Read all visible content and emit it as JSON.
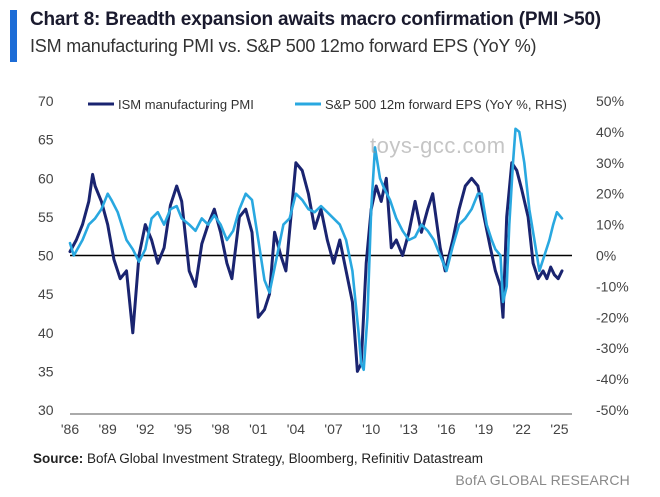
{
  "header": {
    "title": "Chart 8: Breadth expansion awaits macro confirmation (PMI >50)",
    "subtitle": "ISM manufacturing PMI vs. S&P 500 12mo forward EPS (YoY %)"
  },
  "source": {
    "prefix": "Source:",
    "text": " BofA Global Investment Strategy, Bloomberg, Refinitiv Datastream"
  },
  "brand": "BofA GLOBAL RESEARCH",
  "watermark": "toys-gcc.com",
  "colors": {
    "pmi": "#1a2470",
    "eps": "#29a8e0",
    "accent": "#1d6cd6"
  },
  "chart_data": {
    "type": "line",
    "x_tick_labels": [
      "'86",
      "'89",
      "'92",
      "'95",
      "'98",
      "'01",
      "'04",
      "'07",
      "'10",
      "'13",
      "'16",
      "'19",
      "'22",
      "'25"
    ],
    "x_ticks": [
      1986,
      1989,
      1992,
      1995,
      1998,
      2001,
      2004,
      2007,
      2010,
      2013,
      2016,
      2019,
      2022,
      2025
    ],
    "xlim": [
      1986,
      2026
    ],
    "y_left": {
      "lim": [
        30,
        70
      ],
      "ticks": [
        30,
        35,
        40,
        45,
        50,
        55,
        60,
        65,
        70
      ],
      "tick_labels": [
        "30",
        "35",
        "40",
        "45",
        "50",
        "55",
        "60",
        "65",
        "70"
      ]
    },
    "y_right": {
      "lim": [
        -50,
        50
      ],
      "ticks": [
        -50,
        -40,
        -30,
        -20,
        -10,
        0,
        10,
        20,
        30,
        40,
        50
      ],
      "tick_labels": [
        "-50%",
        "-40%",
        "-30%",
        "-20%",
        "-10%",
        "0%",
        "10%",
        "20%",
        "30%",
        "40%",
        "50%"
      ]
    },
    "reference_line": 50,
    "grid": false,
    "legend_position": "top",
    "series": [
      {
        "name": "ISM manufacturing PMI",
        "axis": "left",
        "x": [
          1986.0,
          1986.5,
          1987.0,
          1987.5,
          1987.8,
          1988.0,
          1988.5,
          1989.0,
          1989.5,
          1990.0,
          1990.5,
          1991.0,
          1991.5,
          1992.0,
          1992.5,
          1993.0,
          1993.5,
          1994.0,
          1994.5,
          1994.9,
          1995.5,
          1996.0,
          1996.5,
          1997.0,
          1997.5,
          1998.0,
          1998.5,
          1998.9,
          1999.5,
          2000.0,
          2000.5,
          2001.0,
          2001.5,
          2001.9,
          2002.3,
          2002.8,
          2003.2,
          2003.6,
          2004.0,
          2004.5,
          2005.0,
          2005.5,
          2006.0,
          2006.5,
          2007.0,
          2007.5,
          2008.0,
          2008.5,
          2008.9,
          2009.2,
          2009.6,
          2010.0,
          2010.4,
          2010.8,
          2011.2,
          2011.6,
          2012.0,
          2012.5,
          2013.0,
          2013.5,
          2014.0,
          2014.5,
          2014.9,
          2015.5,
          2015.9,
          2016.5,
          2017.0,
          2017.5,
          2018.0,
          2018.5,
          2019.0,
          2019.5,
          2019.9,
          2020.3,
          2020.5,
          2020.8,
          2021.2,
          2021.6,
          2022.0,
          2022.5,
          2022.9,
          2023.3,
          2023.7,
          2024.0,
          2024.3,
          2024.6,
          2024.9,
          2025.2
        ],
        "values": [
          50.5,
          52,
          54,
          57,
          60.5,
          59,
          57,
          54,
          49.5,
          47,
          48,
          40,
          50,
          54,
          52,
          49,
          51,
          56.5,
          59,
          57,
          48,
          46,
          51.5,
          54,
          56,
          53,
          49,
          47,
          55,
          56,
          53,
          42,
          43,
          45,
          53,
          50,
          48,
          55,
          62,
          61,
          58,
          53.5,
          56,
          52,
          49,
          52,
          48,
          44,
          35,
          36,
          49,
          56,
          59,
          57,
          60,
          51,
          52,
          50,
          53,
          57,
          53,
          56,
          58,
          51,
          48,
          52,
          56,
          59,
          60,
          59,
          55,
          51,
          48,
          46,
          42,
          55,
          62,
          61,
          58.5,
          55,
          49,
          47,
          48,
          47,
          48.5,
          47.5,
          47,
          48
        ]
      },
      {
        "name": "S&P 500 12m forward EPS (YoY %, RHS)",
        "axis": "right",
        "x": [
          1986.0,
          1986.3,
          1987.0,
          1987.5,
          1988.0,
          1988.5,
          1989.0,
          1989.3,
          1989.8,
          1990.5,
          1991.0,
          1991.5,
          1992.0,
          1992.5,
          1993.0,
          1993.5,
          1994.0,
          1994.5,
          1994.9,
          1995.5,
          1996.0,
          1996.5,
          1997.0,
          1997.5,
          1998.0,
          1998.5,
          1999.0,
          1999.5,
          2000.0,
          2000.5,
          2001.0,
          2001.5,
          2001.9,
          2002.5,
          2003.0,
          2003.5,
          2004.0,
          2004.5,
          2005.0,
          2005.5,
          2006.0,
          2006.5,
          2007.0,
          2007.5,
          2008.0,
          2008.5,
          2009.0,
          2009.2,
          2009.4,
          2009.7,
          2010.0,
          2010.3,
          2010.7,
          2011.0,
          2011.5,
          2012.0,
          2012.5,
          2013.0,
          2013.5,
          2014.0,
          2014.5,
          2015.0,
          2015.5,
          2016.0,
          2016.5,
          2017.0,
          2017.5,
          2018.0,
          2018.5,
          2018.8,
          2019.2,
          2019.6,
          2019.9,
          2020.3,
          2020.5,
          2020.8,
          2021.0,
          2021.3,
          2021.5,
          2021.8,
          2022.2,
          2022.6,
          2023.0,
          2023.4,
          2023.8,
          2024.2,
          2024.5,
          2024.8,
          2025.2
        ],
        "values": [
          4,
          0,
          5,
          10,
          12,
          15,
          20,
          18,
          14,
          5,
          2,
          -2,
          2,
          12,
          14,
          10,
          15,
          16,
          12,
          10,
          8,
          12,
          10,
          13,
          10,
          5,
          8,
          15,
          20,
          18,
          5,
          -8,
          -12,
          0,
          10,
          12,
          20,
          18,
          15,
          14,
          16,
          14,
          12,
          10,
          5,
          -5,
          -25,
          -35,
          -37,
          -20,
          15,
          35,
          25,
          22,
          18,
          12,
          8,
          5,
          6,
          10,
          8,
          5,
          0,
          -5,
          3,
          10,
          12,
          15,
          20,
          20,
          10,
          5,
          2,
          0,
          -15,
          -10,
          10,
          30,
          41,
          40,
          30,
          15,
          5,
          -5,
          0,
          5,
          10,
          14,
          12
        ]
      }
    ]
  }
}
